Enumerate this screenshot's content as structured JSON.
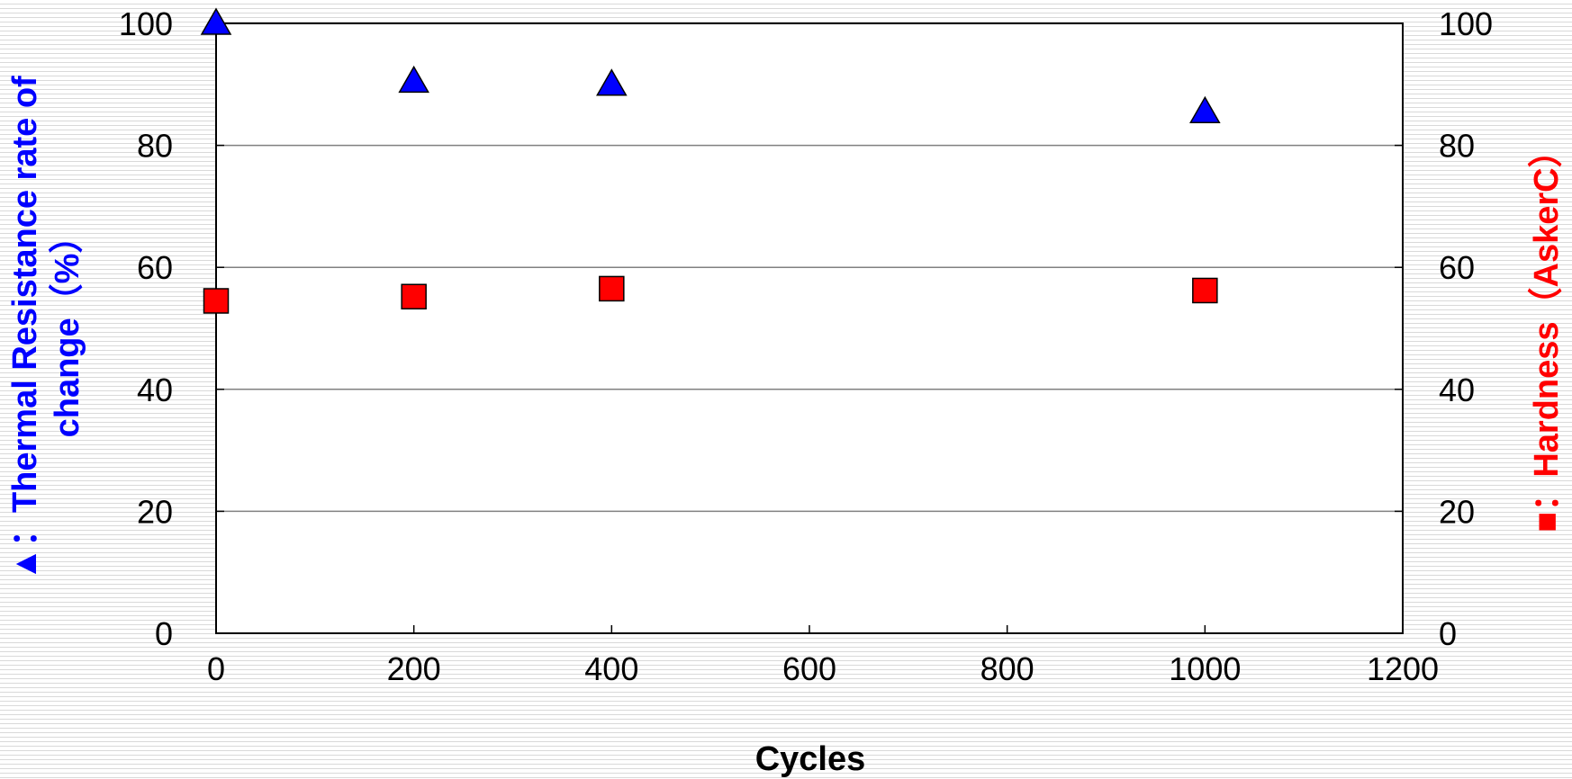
{
  "chart_data": {
    "type": "scatter",
    "title": "",
    "xlabel": "Cycles",
    "ylabel_left": {
      "symbol": "▲",
      "line1": "：Thermal Resistance rate of",
      "line2": "change（%）"
    },
    "ylabel_right": {
      "symbol": "■",
      "text": "：Hardness（AskerC）"
    },
    "xlim": [
      0,
      1200
    ],
    "ylim_left": [
      0,
      100
    ],
    "ylim_right": [
      0,
      100
    ],
    "x_ticks": [
      "0",
      "200",
      "400",
      "600",
      "800",
      "1000",
      "1200"
    ],
    "y_ticks_left": [
      "0",
      "20",
      "40",
      "60",
      "80",
      "100"
    ],
    "y_ticks_right": [
      "0",
      "20",
      "40",
      "60",
      "80",
      "100"
    ],
    "x_tick_values": [
      0,
      200,
      400,
      600,
      800,
      1000,
      1200
    ],
    "y_tick_values": [
      0,
      20,
      40,
      60,
      80,
      100
    ],
    "grid": true,
    "legend": "none",
    "colors": {
      "thermal": "#0000ff",
      "hardness": "#ff0000",
      "grid": "#808080",
      "axis": "#000000"
    },
    "series": [
      {
        "marker": "triangle",
        "axis": "left",
        "x": [
          0,
          200,
          400,
          1000
        ],
        "values": [
          100,
          90.5,
          90,
          85.5
        ]
      },
      {
        "marker": "square",
        "axis": "right",
        "x": [
          0,
          200,
          400,
          1000
        ],
        "values": [
          54.5,
          55.2,
          56.5,
          56.2
        ]
      }
    ]
  }
}
